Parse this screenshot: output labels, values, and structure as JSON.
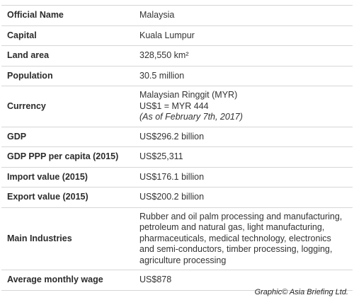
{
  "table": {
    "rows": [
      [
        "Official Name",
        "Malaysia"
      ],
      [
        "Capital",
        "Kuala Lumpur"
      ],
      [
        "Land area",
        "328,550 km²"
      ],
      [
        "Population",
        "30.5 million"
      ],
      [
        "Currency",
        [
          "Malaysian Ringgit (MYR)",
          "US$1 = MYR 444",
          "(As of February 7th, 2017)"
        ]
      ],
      [
        "GDP",
        "US$296.2 billion"
      ],
      [
        "GDP PPP per capita (2015)",
        "US$25,311"
      ],
      [
        "Import value (2015)",
        "US$176.1 billion"
      ],
      [
        "Export value (2015)",
        "US$200.2 billion"
      ],
      [
        "Main Industries",
        "Rubber and oil palm processing and manufacturing, petroleum and natural gas, light manufacturing, pharmaceuticals, medical technology, electronics and semi-conductors, timber processing, logging, agriculture processing"
      ],
      [
        "Average monthly wage",
        "US$878"
      ]
    ]
  },
  "footer": {
    "credit": "Graphic© Asia Briefing Ltd."
  }
}
